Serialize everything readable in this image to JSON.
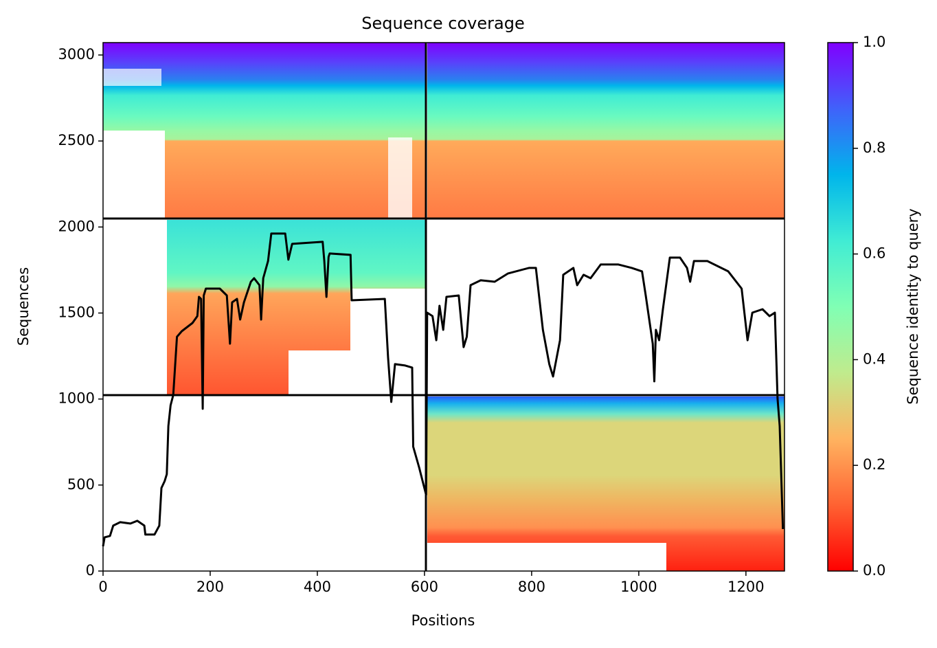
{
  "chart_data": {
    "type": "line",
    "title": "Sequence coverage",
    "xlabel": "Positions",
    "ylabel": "Sequences",
    "colorbar_label": "Sequence identity to query",
    "x": [
      0,
      3,
      13,
      19,
      32,
      51,
      64,
      77,
      79,
      96,
      105,
      109,
      115,
      119,
      122,
      126,
      131,
      138,
      147,
      167,
      176,
      179,
      183,
      186,
      188,
      192,
      218,
      231,
      237,
      241,
      250,
      256,
      263,
      276,
      282,
      292,
      295,
      299,
      308,
      314,
      340,
      346,
      353,
      410,
      413,
      417,
      421,
      423,
      462,
      464,
      526,
      532,
      538,
      545,
      564,
      577,
      579,
      590,
      603,
      605,
      615,
      622,
      628,
      635,
      641,
      664,
      673,
      679,
      686,
      705,
      731,
      756,
      795,
      808,
      821,
      833,
      840,
      853,
      859,
      878,
      885,
      897,
      910,
      929,
      962,
      987,
      1006,
      1013,
      1026,
      1029,
      1032,
      1038,
      1045,
      1058,
      1077,
      1090,
      1096,
      1103,
      1128,
      1167,
      1192,
      1203,
      1212,
      1231,
      1244,
      1254,
      1259,
      1263,
      1269
    ],
    "values": [
      144,
      196,
      204,
      264,
      284,
      276,
      292,
      264,
      212,
      212,
      264,
      483,
      523,
      563,
      843,
      963,
      1023,
      1362,
      1394,
      1442,
      1482,
      1594,
      1582,
      943,
      1602,
      1642,
      1642,
      1602,
      1322,
      1562,
      1582,
      1462,
      1562,
      1682,
      1702,
      1662,
      1462,
      1702,
      1802,
      1962,
      1962,
      1810,
      1902,
      1914,
      1802,
      1594,
      1826,
      1846,
      1838,
      1574,
      1582,
      1242,
      983,
      1203,
      1195,
      1183,
      723,
      603,
      443,
      1502,
      1482,
      1342,
      1542,
      1402,
      1594,
      1602,
      1302,
      1362,
      1662,
      1690,
      1682,
      1730,
      1762,
      1762,
      1402,
      1203,
      1131,
      1342,
      1722,
      1762,
      1662,
      1722,
      1702,
      1782,
      1782,
      1762,
      1742,
      1602,
      1322,
      1103,
      1402,
      1342,
      1522,
      1822,
      1822,
      1762,
      1682,
      1802,
      1802,
      1742,
      1642,
      1342,
      1502,
      1522,
      1482,
      1502,
      1003,
      843,
      244
    ],
    "color": "#000000",
    "xlim": [
      0,
      1272
    ],
    "ylim": [
      0,
      3072
    ],
    "xticks": [
      0,
      200,
      400,
      600,
      800,
      1000,
      1200
    ],
    "yticks": [
      0,
      500,
      1000,
      1500,
      2000,
      2500,
      3000
    ],
    "clim": [
      0,
      1
    ],
    "cticks": [
      {
        "value": 0,
        "label": "0.0"
      },
      0.2,
      0.4,
      0.6,
      0.8,
      {
        "value": 1,
        "label": "1.0"
      }
    ]
  }
}
